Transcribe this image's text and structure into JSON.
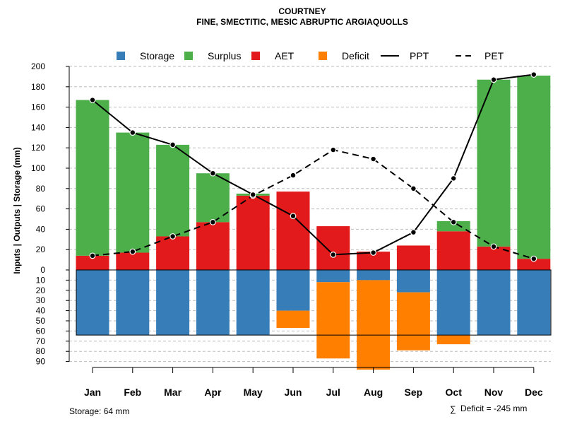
{
  "chart_data": {
    "type": "bar",
    "title": "COURTNEY",
    "subtitle": "FINE, SMECTITIC, MESIC ABRUPTIC ARGIAQUOLLS",
    "ylabel": "Inputs | Outputs | Storage    (mm)",
    "categories": [
      "Jan",
      "Feb",
      "Mar",
      "Apr",
      "May",
      "Jun",
      "Jul",
      "Aug",
      "Sep",
      "Oct",
      "Nov",
      "Dec"
    ],
    "y_upper_ticks": [
      0,
      20,
      40,
      60,
      80,
      100,
      120,
      140,
      160,
      180,
      200
    ],
    "y_lower_ticks": [
      10,
      20,
      30,
      40,
      50,
      60,
      70,
      80,
      90
    ],
    "ylim_upper": [
      0,
      200
    ],
    "ylim_lower": [
      0,
      90
    ],
    "storage_capacity": 64,
    "series": [
      {
        "name": "AET",
        "color": "#E31A1C",
        "values": [
          14,
          17,
          33,
          47,
          73,
          77,
          43,
          18,
          24,
          38,
          23,
          11
        ]
      },
      {
        "name": "Surplus",
        "color": "#4DAF4A",
        "values": [
          153,
          118,
          90,
          48,
          2,
          0,
          0,
          0,
          0,
          10,
          164,
          180
        ]
      },
      {
        "name": "Storage",
        "color": "#377EB8",
        "values": [
          64,
          64,
          64,
          64,
          64,
          40,
          12,
          10,
          22,
          64,
          64,
          64
        ]
      },
      {
        "name": "Deficit",
        "color": "#FF7F00",
        "values": [
          0,
          0,
          0,
          0,
          0,
          17,
          75,
          88,
          57,
          9,
          0,
          0
        ]
      },
      {
        "name": "PPT",
        "color": "#000000",
        "style": "solid",
        "values": [
          167,
          135,
          123,
          95,
          74,
          53,
          15,
          17,
          37,
          90,
          187,
          192
        ]
      },
      {
        "name": "PET",
        "color": "#000000",
        "style": "dashed",
        "values": [
          14,
          18,
          33,
          47,
          73,
          93,
          118,
          109,
          80,
          47,
          23,
          11
        ]
      }
    ],
    "legend": [
      {
        "label": "Storage",
        "kind": "box",
        "color": "#377EB8"
      },
      {
        "label": "Surplus",
        "kind": "box",
        "color": "#4DAF4A"
      },
      {
        "label": "AET",
        "kind": "box",
        "color": "#E31A1C"
      },
      {
        "label": "Deficit",
        "kind": "box",
        "color": "#FF7F00"
      },
      {
        "label": "PPT",
        "kind": "solid"
      },
      {
        "label": "PET",
        "kind": "dashed"
      }
    ],
    "legend_position": "top",
    "storage_note": "Storage: 64 mm",
    "deficit_note": "Deficit = -245 mm",
    "sum_symbol": "∑"
  }
}
